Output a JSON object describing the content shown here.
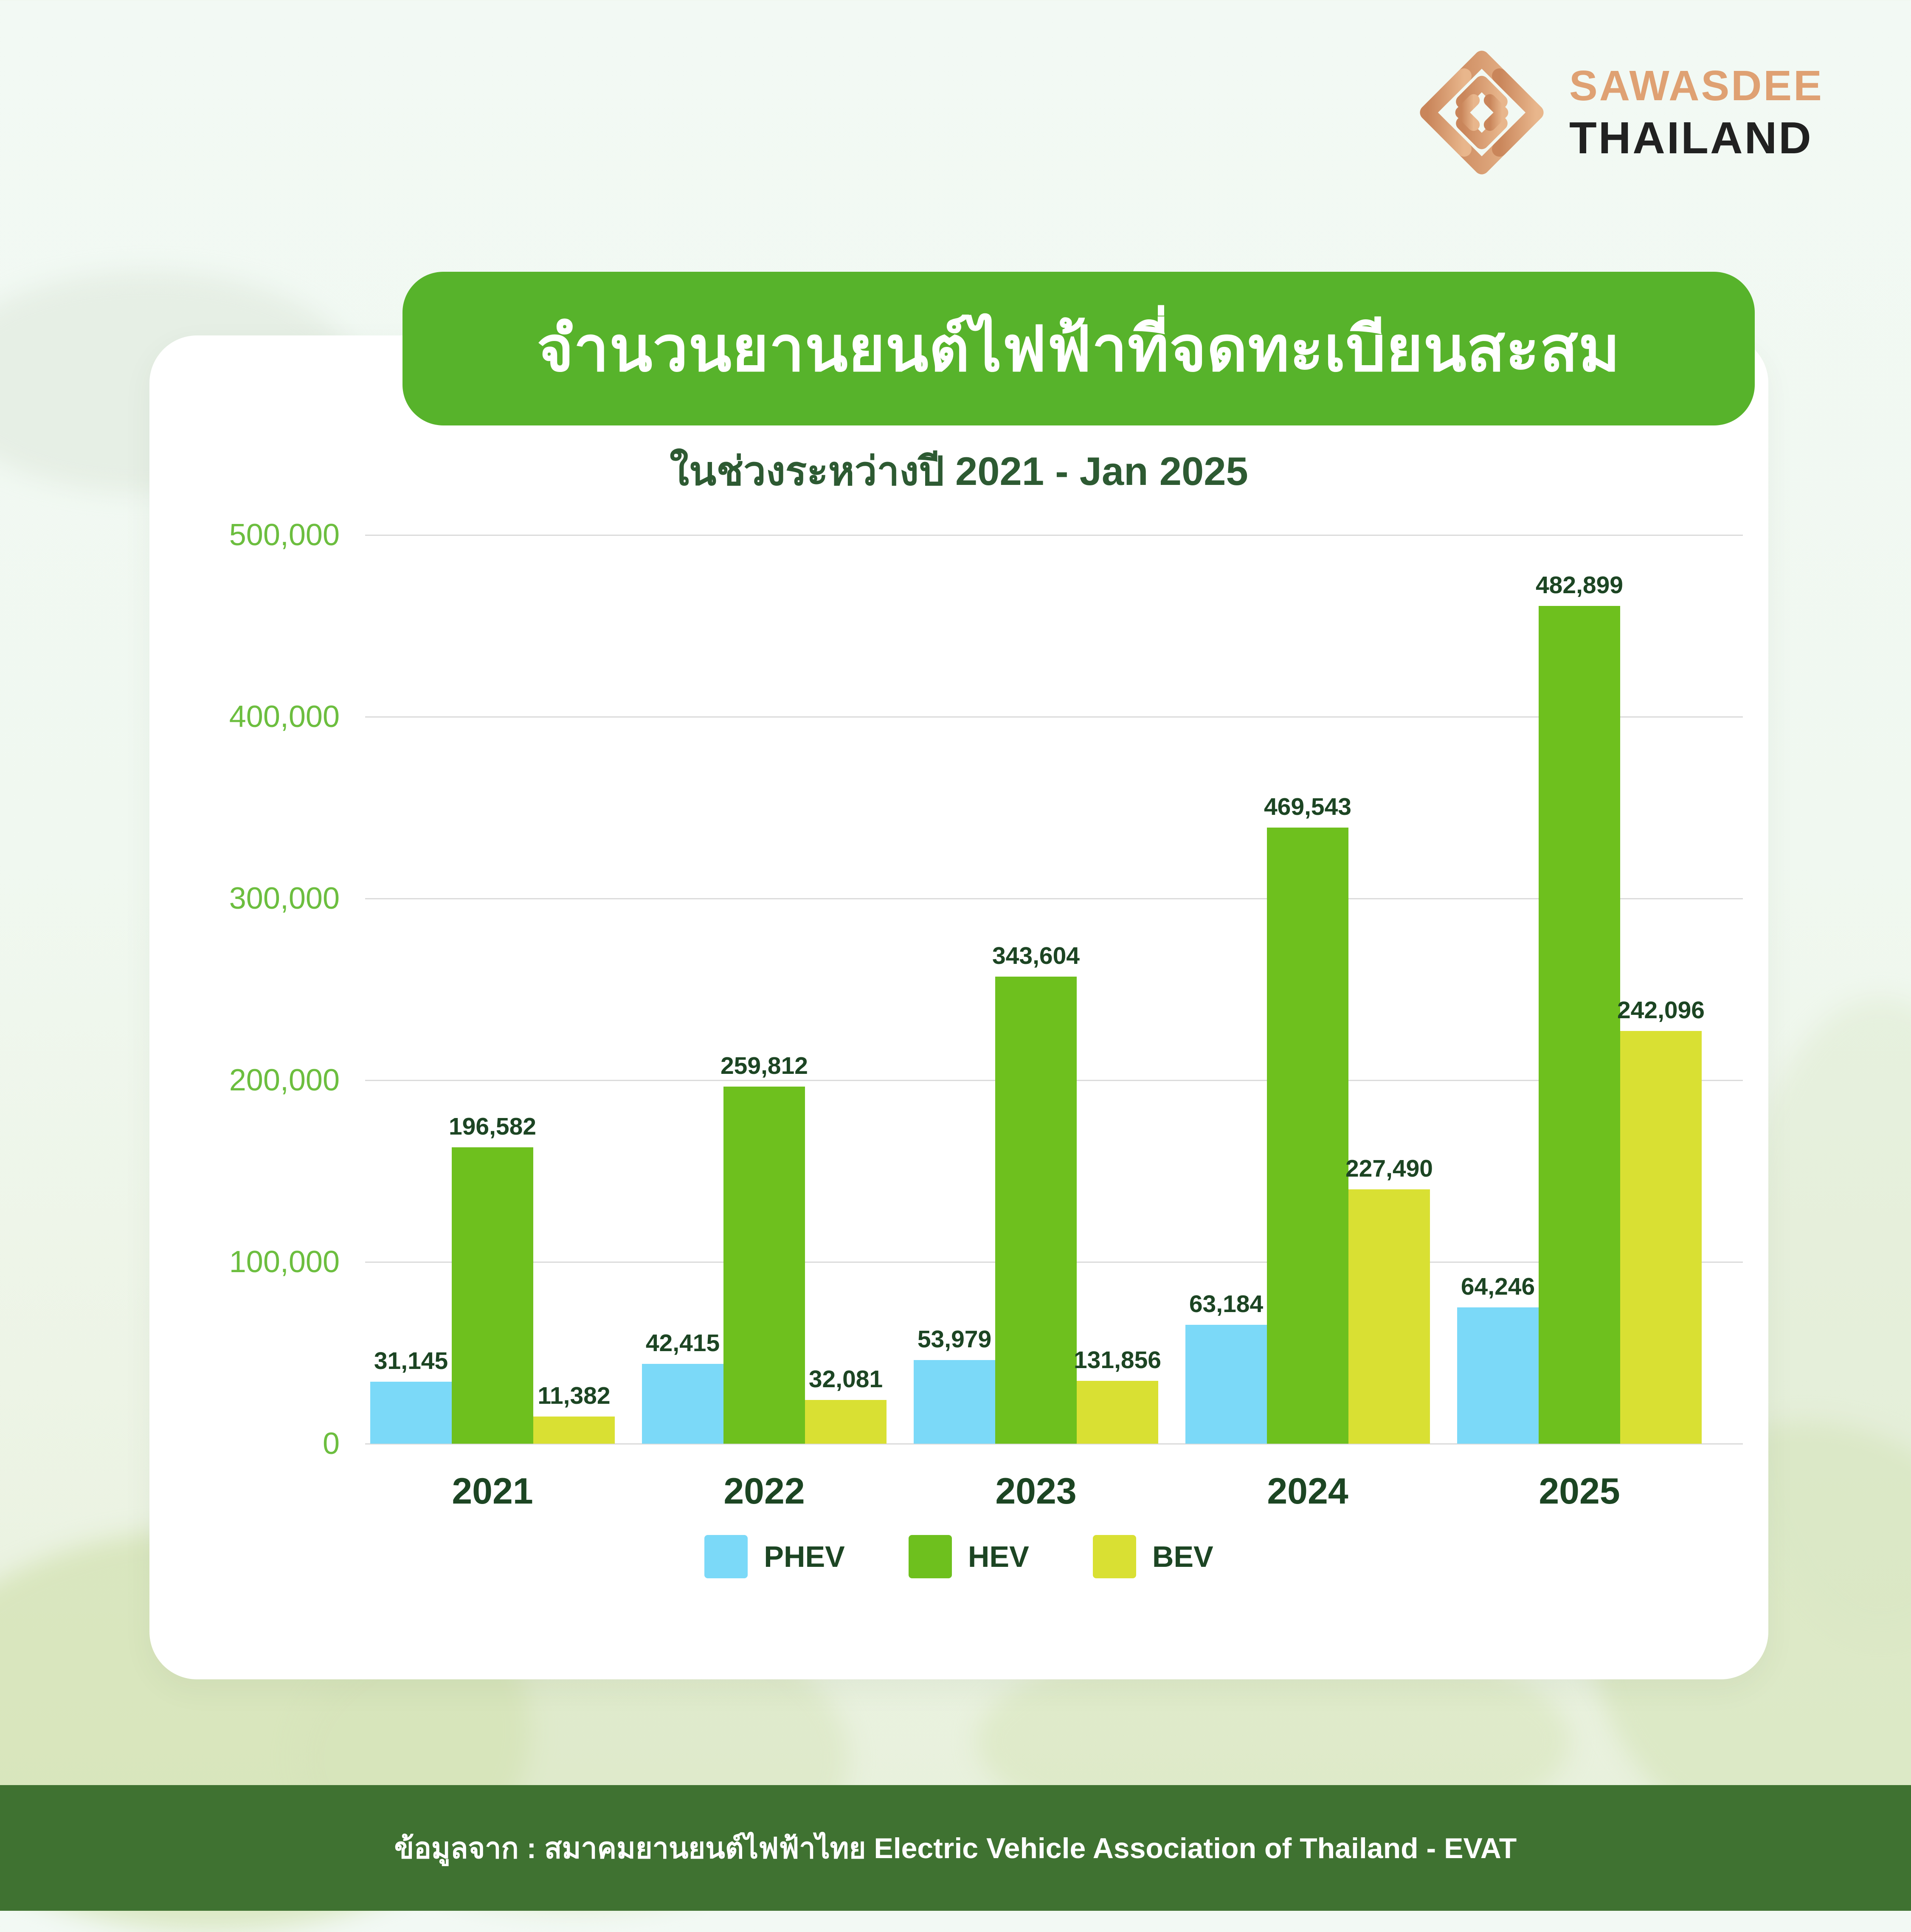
{
  "logo": {
    "brand_top": "SAWASDEE",
    "brand_bottom": "THAILAND",
    "mark_colors": {
      "start": "#C9855A",
      "end": "#E8B68C"
    }
  },
  "header": {
    "title": "จำนวนยานยนต์ไฟฟ้าที่จดทะเบียนสะสม",
    "subtitle": "ในช่วงระหว่างปี 2021 - Jan 2025",
    "banner_color": "#57B32B"
  },
  "chart_data": {
    "type": "bar",
    "title": "จำนวนยานยนต์ไฟฟ้าที่จดทะเบียนสะสม",
    "subtitle": "ในช่วงระหว่างปี 2021 - Jan 2025",
    "categories": [
      "2021",
      "2022",
      "2023",
      "2024",
      "2025"
    ],
    "series": [
      {
        "name": "PHEV",
        "color": "#7BD9F8",
        "values": [
          31145,
          42415,
          53979,
          63184,
          64246
        ],
        "drawn_values": [
          34000,
          44000,
          46000,
          65500,
          75000
        ]
      },
      {
        "name": "HEV",
        "color": "#6EC01E",
        "values": [
          196582,
          259812,
          343604,
          469543,
          482899
        ],
        "drawn_values": [
          163000,
          196500,
          257000,
          339000,
          461000
        ]
      },
      {
        "name": "BEV",
        "color": "#D9E033",
        "values": [
          11382,
          32081,
          131856,
          227490,
          242096
        ],
        "drawn_values": [
          15000,
          24000,
          34500,
          140000,
          227000
        ]
      }
    ],
    "y_ticks": [
      "500,000",
      "400,000",
      "300,000",
      "200,000",
      "100,000",
      "0"
    ],
    "ylim": [
      0,
      500000
    ],
    "grid": true,
    "legend_position": "bottom",
    "note": "bar heights as drawn in the source graphic are not exactly proportional to the printed data labels; drawn_values reproduce the drawn heights"
  },
  "colors": {
    "value_label_text": "#1C4523",
    "axis_tick_text": "#6CBE3F",
    "gridline": "#DBDBDB",
    "footer_background": "#3F7231"
  },
  "footer": {
    "source": "ข้อมูลจาก : สมาคมยานยนต์ไฟฟ้าไทย Electric Vehicle Association of Thailand - EVAT"
  }
}
